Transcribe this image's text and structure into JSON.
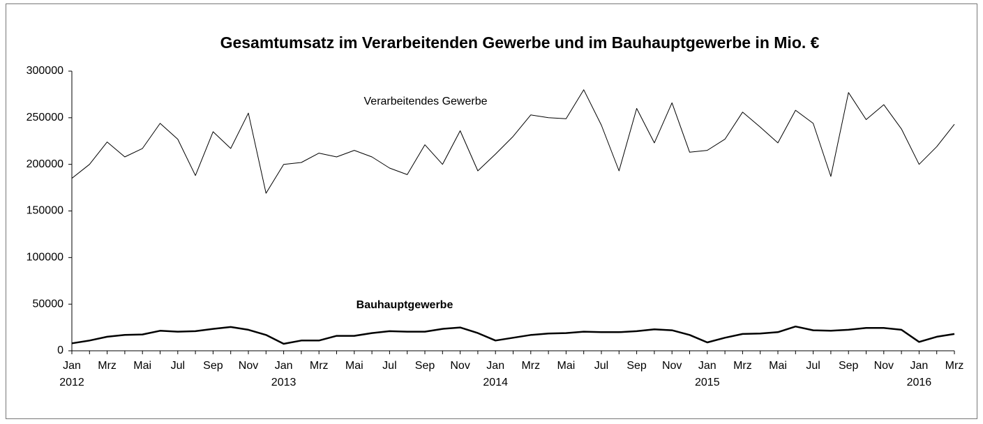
{
  "chart_data": {
    "type": "line",
    "title": "Gesamtumsatz im Verarbeitenden Gewerbe und im Bauhauptgewerbe in Mio. €",
    "categories": [
      "Jan",
      null,
      "Mrz",
      null,
      "Mai",
      null,
      "Jul",
      null,
      "Sep",
      null,
      "Nov",
      null,
      "Jan",
      null,
      "Mrz",
      null,
      "Mai",
      null,
      "Jul",
      null,
      "Sep",
      null,
      "Nov",
      null,
      "Jan",
      null,
      "Mrz",
      null,
      "Mai",
      null,
      "Jul",
      null,
      "Sep",
      null,
      "Nov",
      null,
      "Jan",
      null,
      "Mrz",
      null,
      "Mai",
      null,
      "Jul",
      null,
      "Sep",
      null,
      "Nov",
      null,
      "Jan",
      null,
      "Mrz"
    ],
    "years": [
      "2012",
      "2013",
      "2014",
      "2015",
      "2016"
    ],
    "series": [
      {
        "name": "Verarbeitendes Gewerbe",
        "color": "#000000",
        "width": 1,
        "values": [
          185000,
          200000,
          224000,
          208000,
          217000,
          244000,
          227000,
          188000,
          235000,
          217000,
          255000,
          169000,
          200000,
          202000,
          212000,
          208000,
          215000,
          208000,
          196000,
          189000,
          221000,
          200000,
          236000,
          193000,
          211000,
          230000,
          253000,
          250000,
          249000,
          280000,
          242000,
          193000,
          260000,
          223000,
          266000,
          213000,
          215000,
          227000,
          256000,
          240000,
          223000,
          258000,
          244000,
          187000,
          277000,
          248000,
          264000,
          238000,
          200000,
          219000,
          243000
        ]
      },
      {
        "name": "Bauhauptgewerbe",
        "color": "#000000",
        "width": 2.5,
        "values": [
          8000,
          11000,
          15000,
          17000,
          17500,
          21500,
          20500,
          21000,
          23500,
          25500,
          22500,
          17000,
          7500,
          11000,
          11000,
          16000,
          16000,
          19000,
          21000,
          20500,
          20500,
          23500,
          25000,
          19000,
          11000,
          14000,
          17000,
          18500,
          19000,
          20500,
          20000,
          20000,
          21000,
          23000,
          22000,
          17000,
          9000,
          14000,
          18000,
          18500,
          20000,
          26000,
          22000,
          21500,
          22500,
          24500,
          24500,
          22500,
          9500,
          15000,
          18000
        ]
      }
    ],
    "ylim": [
      0,
      300000
    ],
    "yticks": [
      0,
      50000,
      100000,
      150000,
      200000,
      250000,
      300000
    ],
    "grid": false
  }
}
